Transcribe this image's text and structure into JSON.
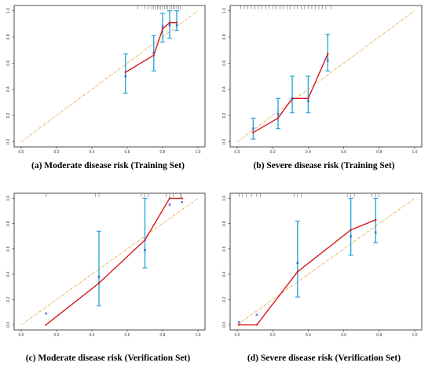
{
  "chart_data": [
    {
      "type": "line",
      "title": "(a) Moderate disease risk (Training Set)",
      "xlim": [
        0,
        1
      ],
      "ylim": [
        0,
        1
      ],
      "ticks": [
        "0.0",
        "0.2",
        "0.4",
        "0.6",
        "0.8",
        "1.0"
      ],
      "reference_line": {
        "from": [
          0,
          0
        ],
        "to": [
          1,
          1
        ],
        "color": "#e8a33c"
      },
      "observed": {
        "color": "#d7191c",
        "x": [
          0.59,
          0.75,
          0.8,
          0.84,
          0.88
        ],
        "y": [
          0.53,
          0.66,
          0.86,
          0.91,
          0.91
        ]
      },
      "corrected": {
        "color": "#3050c8",
        "x": [
          0.59,
          0.75,
          0.8,
          0.84,
          0.88
        ],
        "y": [
          0.5,
          0.68,
          0.88,
          0.89,
          0.89
        ]
      },
      "error_bars": {
        "color": "#2aa8d6",
        "x": [
          0.59,
          0.75,
          0.8,
          0.84,
          0.88
        ],
        "low": [
          0.37,
          0.54,
          0.76,
          0.79,
          0.85
        ],
        "high": [
          0.67,
          0.81,
          0.98,
          1.0,
          1.0
        ]
      },
      "rug": [
        0.66,
        0.7,
        0.72,
        0.74,
        0.75,
        0.76,
        0.77,
        0.78,
        0.79,
        0.8,
        0.81,
        0.82,
        0.83,
        0.84,
        0.85,
        0.86,
        0.87,
        0.88,
        0.89,
        0.9
      ]
    },
    {
      "type": "line",
      "title": "(b) Severe disease risk (Training Set)",
      "xlim": [
        0,
        1
      ],
      "ylim": [
        0,
        1
      ],
      "ticks": [
        "0.0",
        "0.2",
        "0.4",
        "0.6",
        "0.8",
        "1.0"
      ],
      "reference_line": {
        "from": [
          0,
          0
        ],
        "to": [
          1,
          1
        ],
        "color": "#e8a33c"
      },
      "observed": {
        "color": "#d7191c",
        "x": [
          0.09,
          0.23,
          0.31,
          0.4,
          0.51
        ],
        "y": [
          0.07,
          0.18,
          0.33,
          0.33,
          0.67
        ]
      },
      "corrected": {
        "color": "#3050c8",
        "x": [
          0.09,
          0.23,
          0.31,
          0.4,
          0.51
        ],
        "y": [
          0.1,
          0.21,
          0.33,
          0.31,
          0.62
        ]
      },
      "error_bars": {
        "color": "#2aa8d6",
        "x": [
          0.09,
          0.23,
          0.31,
          0.4,
          0.51
        ],
        "low": [
          0.02,
          0.1,
          0.22,
          0.22,
          0.54
        ],
        "high": [
          0.18,
          0.33,
          0.5,
          0.5,
          0.82
        ]
      },
      "rug": [
        0.02,
        0.04,
        0.06,
        0.08,
        0.1,
        0.12,
        0.14,
        0.16,
        0.18,
        0.2,
        0.22,
        0.24,
        0.26,
        0.28,
        0.3,
        0.32,
        0.34,
        0.36,
        0.38,
        0.4,
        0.42,
        0.44,
        0.46,
        0.48,
        0.5,
        0.53
      ]
    },
    {
      "type": "line",
      "title": "(c) Moderate disease risk (Verification Set)",
      "xlim": [
        0,
        1
      ],
      "ylim": [
        0,
        1
      ],
      "ticks": [
        "0.0",
        "0.2",
        "0.4",
        "0.6",
        "0.8",
        "1.0"
      ],
      "reference_line": {
        "from": [
          0,
          0
        ],
        "to": [
          1,
          1
        ],
        "color": "#e8a33c"
      },
      "observed": {
        "color": "#d7191c",
        "x": [
          0.14,
          0.44,
          0.7,
          0.84,
          0.91
        ],
        "y": [
          0.0,
          0.33,
          0.67,
          1.0,
          1.0
        ]
      },
      "corrected": {
        "color": "#3050c8",
        "x": [
          0.14,
          0.44,
          0.7,
          0.84,
          0.91
        ],
        "y": [
          0.09,
          0.38,
          0.59,
          0.95,
          0.97
        ]
      },
      "error_bars": {
        "color": "#2aa8d6",
        "x": [
          0.44,
          0.7
        ],
        "low": [
          0.15,
          0.45
        ],
        "high": [
          0.74,
          1.0
        ]
      },
      "rug": [
        0.14,
        0.42,
        0.44,
        0.68,
        0.7,
        0.72,
        0.82,
        0.84,
        0.86,
        0.9,
        0.91
      ]
    },
    {
      "type": "line",
      "title": "(d) Severe disease risk (Verification Set)",
      "xlim": [
        0,
        1
      ],
      "ylim": [
        0,
        1
      ],
      "ticks": [
        "0.0",
        "0.2",
        "0.4",
        "0.6",
        "0.8",
        "1.0"
      ],
      "reference_line": {
        "from": [
          0,
          0
        ],
        "to": [
          1,
          1
        ],
        "color": "#e8a33c"
      },
      "observed": {
        "color": "#d7191c",
        "x": [
          0.01,
          0.11,
          0.34,
          0.64,
          0.78
        ],
        "y": [
          0.0,
          0.0,
          0.42,
          0.75,
          0.83
        ]
      },
      "corrected": {
        "color": "#3050c8",
        "x": [
          0.01,
          0.11,
          0.34,
          0.64,
          0.78
        ],
        "y": [
          0.02,
          0.08,
          0.49,
          0.7,
          0.73
        ]
      },
      "error_bars": {
        "color": "#2aa8d6",
        "x": [
          0.34,
          0.64,
          0.78
        ],
        "low": [
          0.22,
          0.55,
          0.65
        ],
        "high": [
          0.82,
          1.0,
          1.0
        ]
      },
      "rug": [
        0.01,
        0.03,
        0.05,
        0.08,
        0.11,
        0.13,
        0.32,
        0.34,
        0.36,
        0.62,
        0.64,
        0.66,
        0.76,
        0.78,
        0.8
      ]
    }
  ]
}
